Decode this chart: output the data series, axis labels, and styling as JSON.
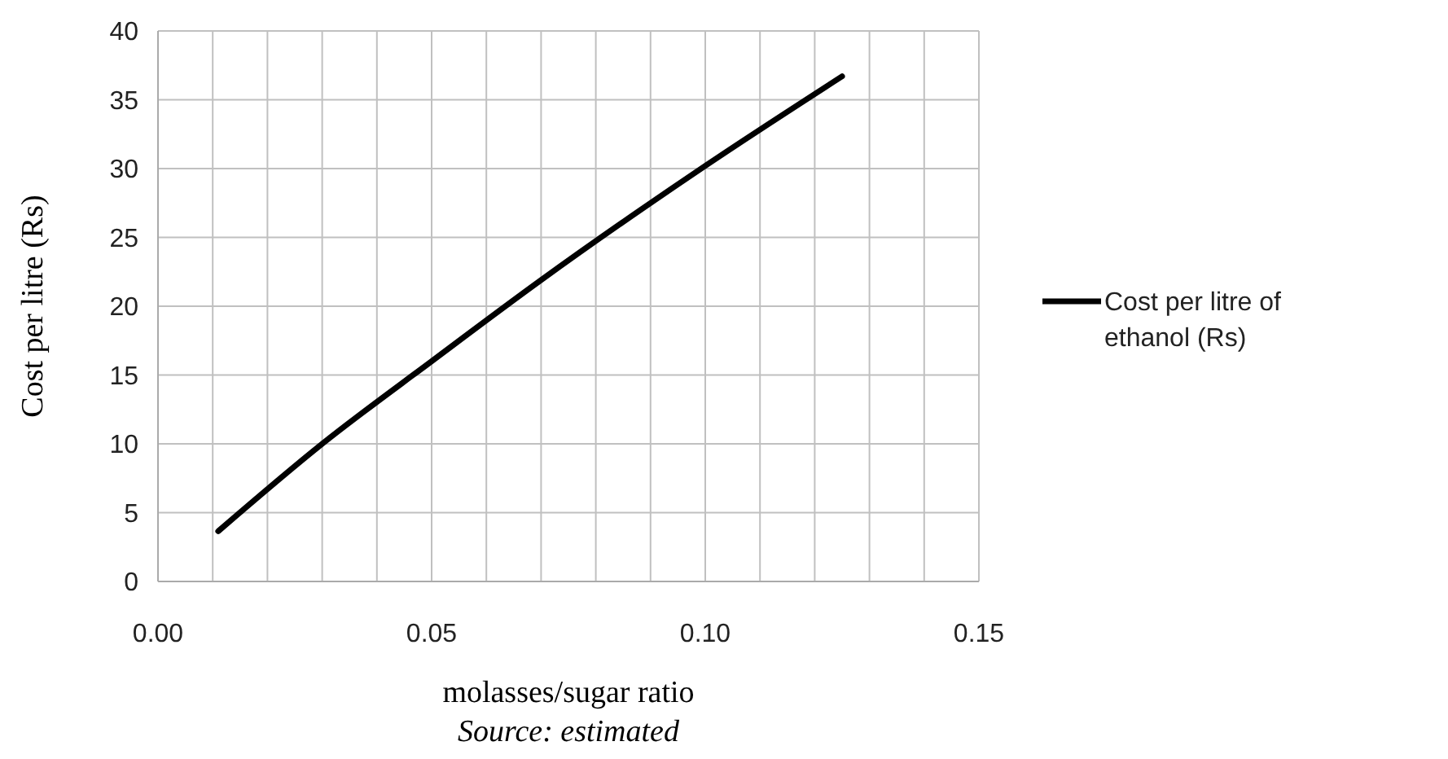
{
  "chart_data": {
    "type": "line",
    "xlabel": "molasses/sugar ratio",
    "ylabel": "Cost per litre (Rs)",
    "annotations": [
      "Source: estimated"
    ],
    "series": [
      {
        "name": "Cost per litre of ethanol (Rs)",
        "color": "#000000",
        "x": [
          0.011,
          0.03,
          0.05,
          0.07,
          0.1,
          0.125
        ],
        "values": [
          3.65,
          10,
          16,
          21.9,
          30.2,
          36.7
        ]
      }
    ],
    "xlim": [
      0,
      0.15
    ],
    "xticks": [
      "0.00",
      {
        "value": 0.01,
        "label": null
      },
      {
        "value": 0.02,
        "label": null
      },
      {
        "value": 0.03,
        "label": null
      },
      {
        "value": 0.04,
        "label": null
      },
      {
        "value": 0.05,
        "label": "0.05"
      },
      {
        "value": 0.06,
        "label": null
      },
      {
        "value": 0.07,
        "label": null
      },
      {
        "value": 0.08,
        "label": null
      },
      {
        "value": 0.09,
        "label": null
      },
      {
        "value": 0.1,
        "label": "0.10"
      },
      {
        "value": 0.11,
        "label": null
      },
      {
        "value": 0.12,
        "label": null
      },
      {
        "value": 0.13,
        "label": null
      },
      {
        "value": 0.14,
        "label": null
      },
      {
        "value": 0.15,
        "label": "0.15"
      }
    ],
    "ylim": [
      0,
      40
    ],
    "yticks": [
      0,
      5,
      10,
      15,
      20,
      25,
      30,
      35,
      40
    ],
    "grid": true,
    "legend": "right",
    "marker": "none",
    "line_style": "solid"
  }
}
